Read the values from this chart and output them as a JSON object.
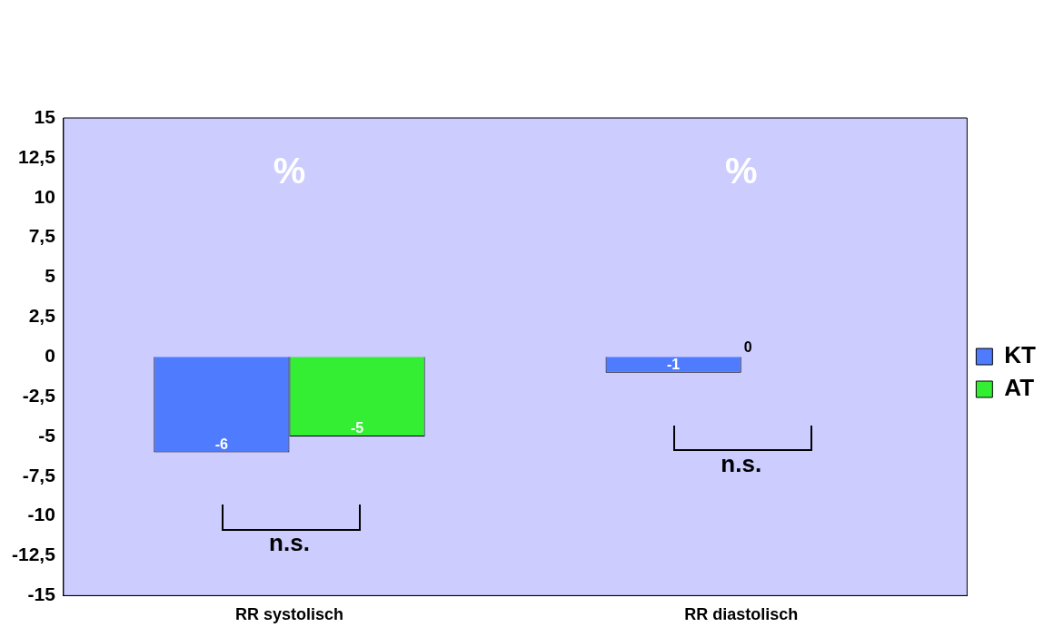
{
  "chart_data": {
    "type": "bar",
    "categories": [
      "RR systolisch",
      "RR diastolisch"
    ],
    "series": [
      {
        "name": "KT",
        "color": "#4f7cff",
        "values": [
          -6,
          -1
        ]
      },
      {
        "name": "AT",
        "color": "#33ee33",
        "values": [
          -5,
          0
        ]
      }
    ],
    "ylim": [
      -15,
      15
    ],
    "yticks": [
      {
        "value": -15,
        "label": "-15"
      },
      {
        "value": -12.5,
        "label": "-12,5"
      },
      {
        "value": -10,
        "label": "-10"
      },
      {
        "value": -7.5,
        "label": "-7,5"
      },
      {
        "value": -5,
        "label": "-5"
      },
      {
        "value": -2.5,
        "label": "-2,5"
      },
      {
        "value": 0,
        "label": "0"
      },
      {
        "value": 2.5,
        "label": "2,5"
      },
      {
        "value": 5,
        "label": "5"
      },
      {
        "value": 7.5,
        "label": "7,5"
      },
      {
        "value": 10,
        "label": "10"
      },
      {
        "value": 12.5,
        "label": "12,5"
      },
      {
        "value": 15,
        "label": "15"
      }
    ],
    "data_labels": true,
    "grid": false,
    "legend": "right",
    "annotations": [
      "%",
      "%",
      "n.s.",
      "n.s."
    ]
  }
}
